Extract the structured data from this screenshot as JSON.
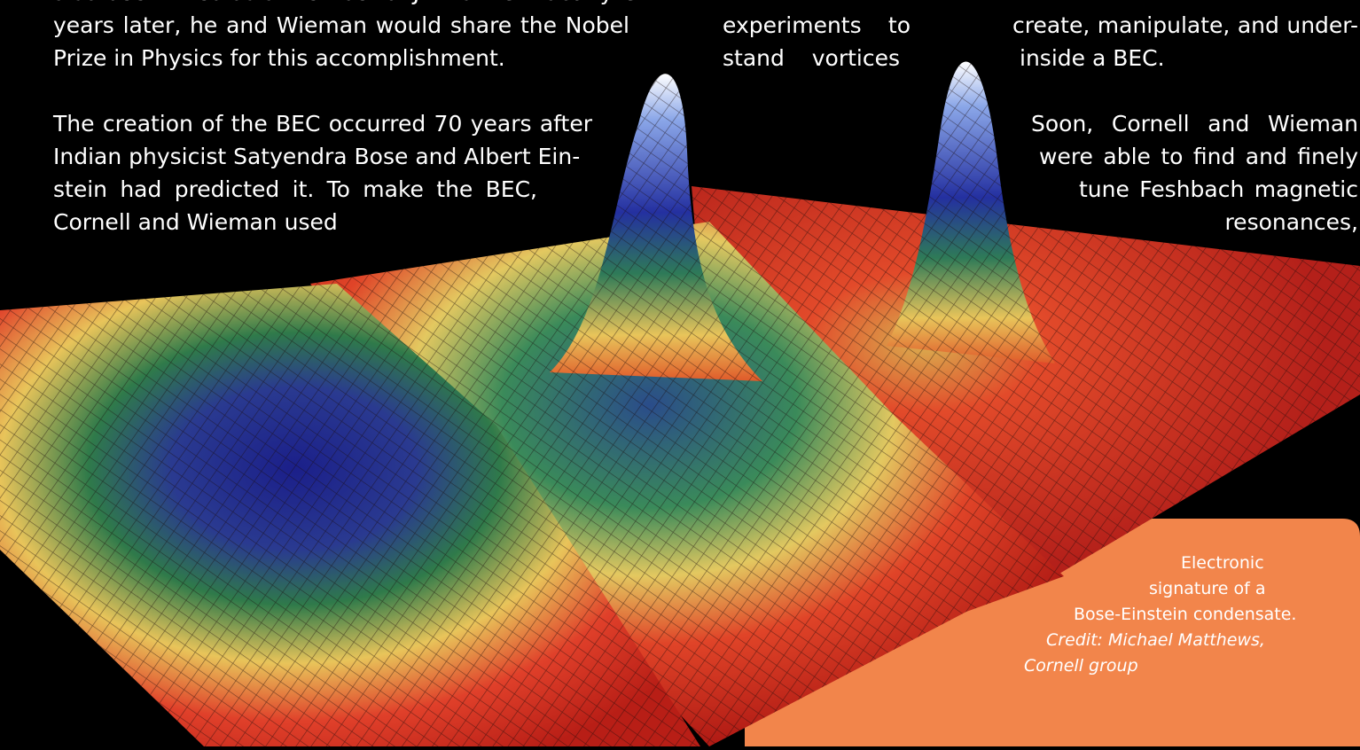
{
  "column_1": {
    "paragraphs": [
      [
        "also been hired as a member of JILA’s NIST faculty. Six",
        "years later, he and Wieman would share the Nobel",
        "Prize in Physics for this accomplishment."
      ],
      [
        "The creation of the BEC occurred 70 years after",
        "Indian physicist Satyendra Bose and Albert Ein-",
        "stein had predicted it. To make the BEC,",
        "Cornell and Wieman used"
      ]
    ]
  },
  "column_2": {
    "lines": [
      "experiments to",
      "stand vortices"
    ]
  },
  "column_3": {
    "paragraphs": [
      [
        "create, manipulate, and under-",
        "inside a BEC."
      ],
      [
        "Soon, Cornell and Wieman",
        "were able to find and finely",
        "tune Feshbach magnetic",
        "resonances,"
      ]
    ]
  },
  "caption": {
    "lines": [
      "Electronic",
      "signature of a",
      "Bose-Einstein condensate."
    ],
    "credit": [
      "Credit: Michael Matthews,",
      "Cornell group"
    ]
  }
}
